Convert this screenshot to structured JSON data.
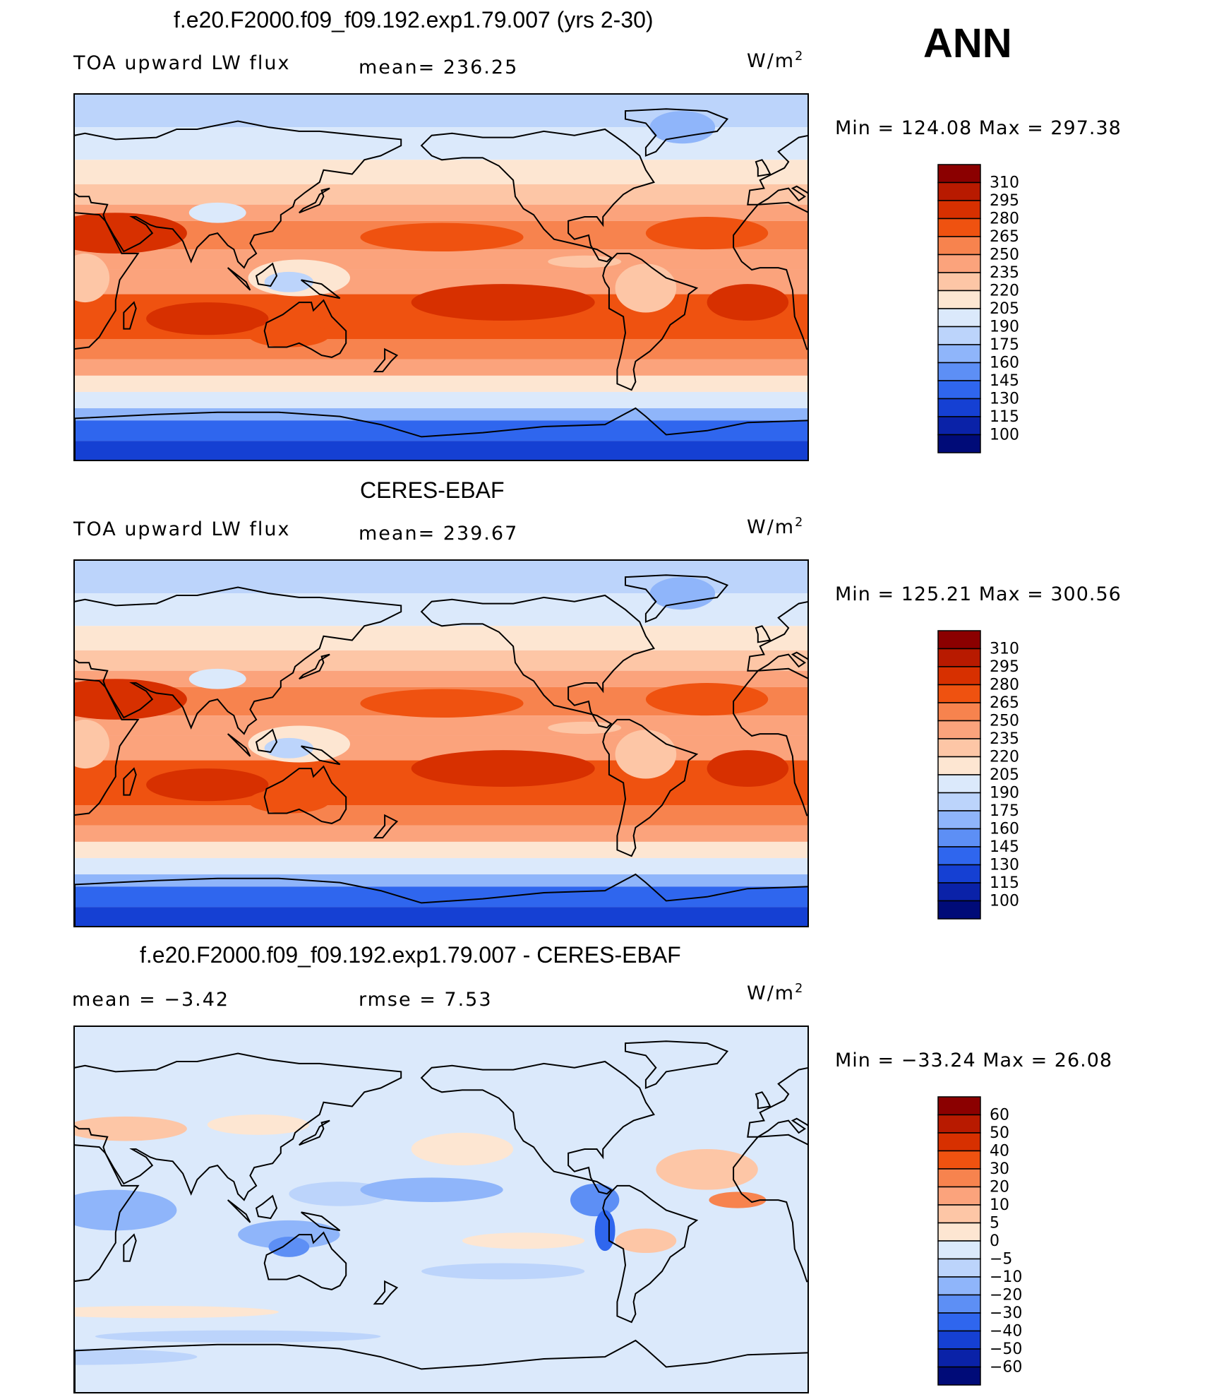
{
  "figure": {
    "season": "ANN"
  },
  "panels": [
    {
      "id": "model",
      "title": "f.e20.F2000.f09_f09.192.exp1.79.007 (yrs 2-30)",
      "left_label": "TOA upward LW flux",
      "center_label": "mean= 236.25",
      "units_base": "W/m",
      "units_exp": "2",
      "minmax": "Min  =  124.08  Max  =  297.38",
      "map_type": "absolute",
      "colorbar": {
        "levels": [
          "310",
          "295",
          "280",
          "265",
          "250",
          "235",
          "220",
          "205",
          "190",
          "175",
          "160",
          "145",
          "130",
          "115",
          "100"
        ],
        "colors": [
          "#8b0000",
          "#b81a00",
          "#d73000",
          "#ef5210",
          "#f7834e",
          "#fba37c",
          "#fdc6a6",
          "#fde6d2",
          "#dbe9fb",
          "#bcd4fb",
          "#8fb5fa",
          "#5d8ff5",
          "#2f66ee",
          "#1540d3",
          "#0a22a8",
          "#000b78"
        ]
      }
    },
    {
      "id": "obs",
      "title": "CERES-EBAF",
      "left_label": "TOA upward LW flux",
      "center_label": "mean= 239.67",
      "units_base": "W/m",
      "units_exp": "2",
      "minmax": "Min  =  125.21  Max  =  300.56",
      "map_type": "absolute",
      "colorbar": {
        "levels": [
          "310",
          "295",
          "280",
          "265",
          "250",
          "235",
          "220",
          "205",
          "190",
          "175",
          "160",
          "145",
          "130",
          "115",
          "100"
        ],
        "colors": [
          "#8b0000",
          "#b81a00",
          "#d73000",
          "#ef5210",
          "#f7834e",
          "#fba37c",
          "#fdc6a6",
          "#fde6d2",
          "#dbe9fb",
          "#bcd4fb",
          "#8fb5fa",
          "#5d8ff5",
          "#2f66ee",
          "#1540d3",
          "#0a22a8",
          "#000b78"
        ]
      }
    },
    {
      "id": "diff",
      "title": "f.e20.F2000.f09_f09.192.exp1.79.007 - CERES-EBAF",
      "left_label": "mean  =    −3.42",
      "center_label": "rmse  =     7.53",
      "units_base": "W/m",
      "units_exp": "2",
      "minmax": "Min  =  −33.24  Max  =    26.08",
      "map_type": "difference",
      "colorbar": {
        "levels": [
          "60",
          "50",
          "40",
          "30",
          "20",
          "10",
          "5",
          "0",
          "−5",
          "−10",
          "−20",
          "−30",
          "−40",
          "−50",
          "−60"
        ],
        "colors": [
          "#8b0000",
          "#b81a00",
          "#d73000",
          "#ef5210",
          "#f7834e",
          "#fba37c",
          "#fdc6a6",
          "#fde6d2",
          "#dbe9fb",
          "#bcd4fb",
          "#8fb5fa",
          "#5d8ff5",
          "#2f66ee",
          "#1540d3",
          "#0a22a8",
          "#000b78"
        ]
      }
    }
  ],
  "chart_data": [
    {
      "type": "heatmap",
      "title": "f.e20.F2000.f09_f09.192.exp1.79.007 (yrs 2-30)",
      "variable": "TOA upward LW flux",
      "units": "W/m2",
      "mean": 236.25,
      "min": 124.08,
      "max": 297.38,
      "contour_levels": [
        100,
        115,
        130,
        145,
        160,
        175,
        190,
        205,
        220,
        235,
        250,
        265,
        280,
        295,
        310
      ]
    },
    {
      "type": "heatmap",
      "title": "CERES-EBAF",
      "variable": "TOA upward LW flux",
      "units": "W/m2",
      "mean": 239.67,
      "min": 125.21,
      "max": 300.56,
      "contour_levels": [
        100,
        115,
        130,
        145,
        160,
        175,
        190,
        205,
        220,
        235,
        250,
        265,
        280,
        295,
        310
      ]
    },
    {
      "type": "heatmap",
      "title": "f.e20.F2000.f09_f09.192.exp1.79.007 - CERES-EBAF",
      "units": "W/m2",
      "mean": -3.42,
      "rmse": 7.53,
      "min": -33.24,
      "max": 26.08,
      "contour_levels": [
        -60,
        -50,
        -40,
        -30,
        -20,
        -10,
        -5,
        0,
        5,
        10,
        20,
        30,
        40,
        50,
        60
      ]
    }
  ]
}
